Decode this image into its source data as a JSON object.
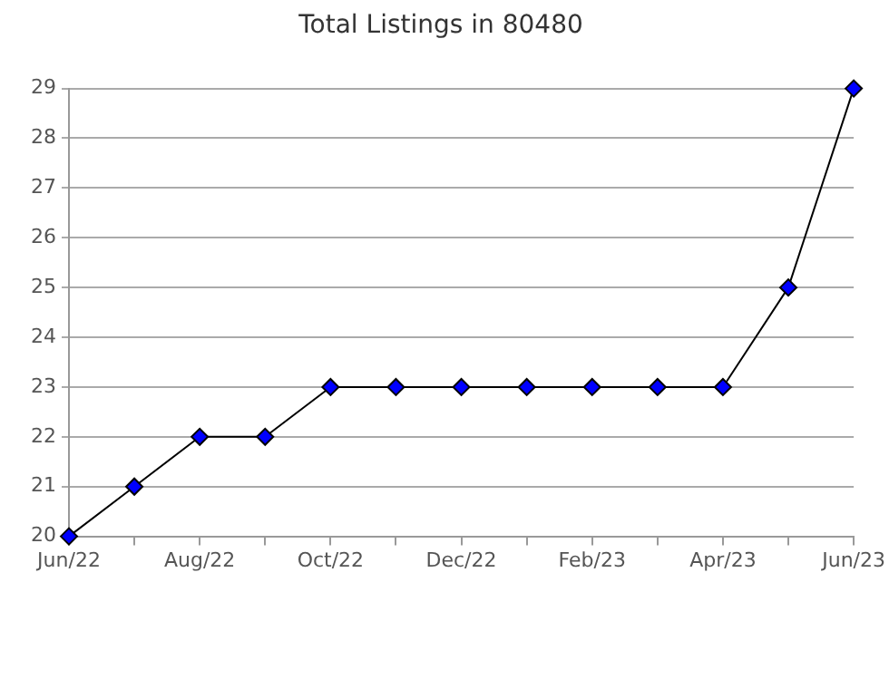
{
  "chart_data": {
    "type": "line",
    "title": "Total Listings in 80480",
    "categories": [
      "Jun/22",
      null,
      "Aug/22",
      null,
      "Oct/22",
      null,
      "Dec/22",
      null,
      "Feb/23",
      null,
      "Apr/23",
      null,
      "Jun/23"
    ],
    "series": [
      {
        "color": "#0000ff",
        "values": [
          20,
          21,
          22,
          22,
          23,
          23,
          23,
          23,
          23,
          23,
          23,
          25,
          29
        ]
      }
    ],
    "ylim": [
      20,
      29
    ],
    "yticks": [
      20,
      21,
      22,
      23,
      24,
      25,
      26,
      27,
      28,
      29
    ],
    "grid": "y",
    "marker": "diamond",
    "line_style": "solid",
    "legend": false
  }
}
